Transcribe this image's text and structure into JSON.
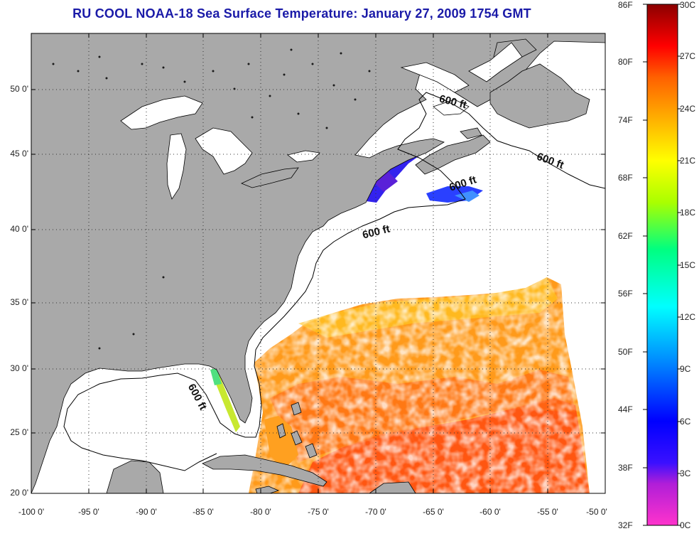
{
  "title": "RU COOL  NOAA-18  Sea Surface Temperature:  January 27, 2009 1754 GMT",
  "lat_ticks": [
    "50 0'",
    "45 0'",
    "40 0'",
    "35 0'",
    "30 0'",
    "25 0'",
    "20 0'"
  ],
  "lon_ticks": [
    "-100 0'",
    "-95 0'",
    "-90 0'",
    "-85 0'",
    "-80 0'",
    "-75 0'",
    "-70 0'",
    "-65 0'",
    "-60 0'",
    "-55 0'",
    "-50 0'"
  ],
  "colorbar": {
    "fahrenheit": [
      "86F",
      "80F",
      "74F",
      "68F",
      "62F",
      "56F",
      "50F",
      "44F",
      "38F",
      "32F"
    ],
    "celsius": [
      "30C",
      "27C",
      "24C",
      "21C",
      "18C",
      "15C",
      "12C",
      "9C",
      "6C",
      "3C",
      "0C"
    ]
  },
  "contour_labels": [
    "600 ft",
    "600 ft",
    "600 ft",
    "600 ft",
    "600 ft"
  ],
  "colors": {
    "land": "#a9a9a9",
    "ocean_nodata": "#ffffff",
    "title": "#1a1aa8"
  }
}
